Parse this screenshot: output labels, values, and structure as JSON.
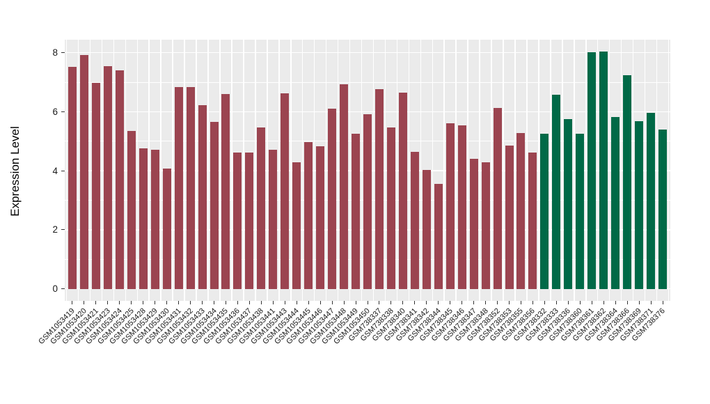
{
  "figure": {
    "background": "#FFFFFF",
    "panel_background": "#EBEBEB",
    "grid_color": "#FFFFFF",
    "axis_text_color": "#1A1A1A"
  },
  "chart_data": {
    "type": "bar",
    "title": "",
    "xlabel": "",
    "ylabel": "Expression Level",
    "ylim": [
      0,
      8.4
    ],
    "yticks": [
      0,
      2,
      4,
      6,
      8
    ],
    "yticks_minor": [
      1,
      3,
      5,
      7
    ],
    "grid": true,
    "legend_position": "none",
    "x_tick_rotation": 45,
    "group_colors": [
      "#9B4450",
      "#006947"
    ],
    "categories": [
      "GSM1053419",
      "GSM1053420",
      "GSM1053421",
      "GSM1053423",
      "GSM1053424",
      "GSM1053425",
      "GSM1053428",
      "GSM1053429",
      "GSM1053430",
      "GSM1053431",
      "GSM1053432",
      "GSM1053433",
      "GSM1053434",
      "GSM1053435",
      "GSM1053436",
      "GSM1053437",
      "GSM1053438",
      "GSM1053441",
      "GSM1053443",
      "GSM1053444",
      "GSM1053445",
      "GSM1053446",
      "GSM1053447",
      "GSM1053448",
      "GSM1053449",
      "GSM1053450",
      "GSM738337",
      "GSM738338",
      "GSM738340",
      "GSM738341",
      "GSM738342",
      "GSM738344",
      "GSM738345",
      "GSM738346",
      "GSM738347",
      "GSM738348",
      "GSM738352",
      "GSM738353",
      "GSM738355",
      "GSM738356",
      "GSM738332",
      "GSM738333",
      "GSM738336",
      "GSM738360",
      "GSM738361",
      "GSM738362",
      "GSM738364",
      "GSM738366",
      "GSM738369",
      "GSM738371",
      "GSM738376"
    ],
    "values": [
      7.52,
      7.92,
      6.99,
      7.54,
      7.41,
      5.35,
      4.76,
      4.72,
      4.07,
      6.83,
      6.83,
      6.22,
      5.65,
      6.59,
      4.61,
      4.63,
      5.48,
      4.71,
      6.62,
      4.3,
      4.97,
      4.83,
      6.1,
      6.93,
      5.25,
      5.91,
      6.76,
      5.47,
      6.64,
      4.64,
      4.04,
      3.55,
      5.61,
      5.55,
      4.4,
      4.29,
      6.12,
      4.86,
      5.27,
      4.63,
      5.25,
      6.57,
      5.75,
      5.26,
      8.02,
      8.05,
      5.83,
      7.24,
      5.67,
      5.97,
      5.4
    ],
    "group_of": [
      0,
      0,
      0,
      0,
      0,
      0,
      0,
      0,
      0,
      0,
      0,
      0,
      0,
      0,
      0,
      0,
      0,
      0,
      0,
      0,
      0,
      0,
      0,
      0,
      0,
      0,
      0,
      0,
      0,
      0,
      0,
      0,
      0,
      0,
      0,
      0,
      0,
      0,
      0,
      0,
      1,
      1,
      1,
      1,
      1,
      1,
      1,
      1,
      1,
      1,
      1
    ]
  }
}
